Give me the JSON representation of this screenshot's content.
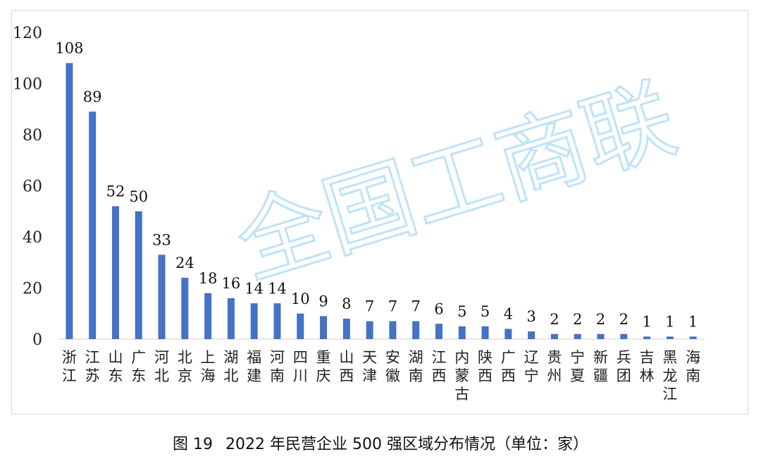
{
  "chart_data": {
    "type": "bar",
    "categories": [
      "浙江",
      "江苏",
      "山东",
      "广东",
      "河北",
      "北京",
      "上海",
      "湖北",
      "福建",
      "河南",
      "四川",
      "重庆",
      "山西",
      "天津",
      "安徽",
      "湖南",
      "江西",
      "内蒙古",
      "陕西",
      "广西",
      "辽宁",
      "贵州",
      "宁夏",
      "新疆",
      "兵团",
      "吉林",
      "黑龙江",
      "海南"
    ],
    "values": [
      108,
      89,
      52,
      50,
      33,
      24,
      18,
      16,
      14,
      14,
      10,
      9,
      8,
      7,
      7,
      7,
      6,
      5,
      5,
      4,
      3,
      2,
      2,
      2,
      2,
      1,
      1,
      1
    ],
    "ylim": [
      0,
      120
    ],
    "yticks": [
      0,
      20,
      40,
      60,
      80,
      100,
      120
    ],
    "grid": false,
    "bar_color": "#4472c4",
    "data_labels": true
  },
  "caption": {
    "figure_no": "图 19",
    "text": "2022 年民营企业 500 强区域分布情况（单位：家）"
  },
  "watermark": {
    "text": "全国工商联",
    "color": "#bfe3f7"
  }
}
